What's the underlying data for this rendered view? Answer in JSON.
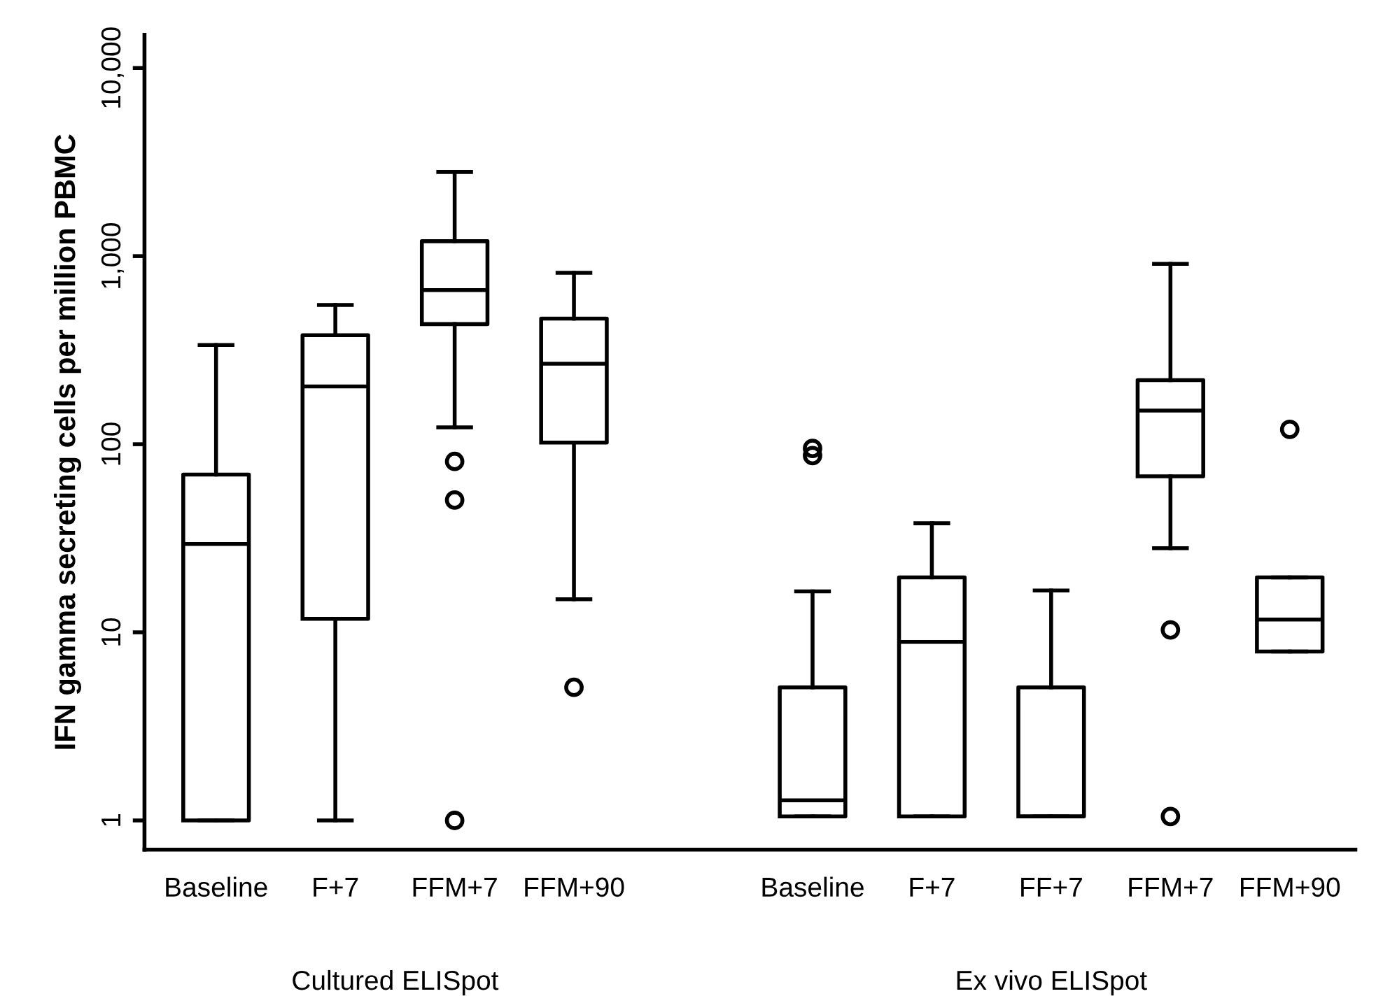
{
  "chart_data": {
    "type": "box",
    "ylabel": "IFN gamma secreting cells per million PBMC",
    "categories": [
      "Baseline",
      "F+7",
      "FFM+7",
      "FFM+90",
      null,
      "Baseline",
      "F+7",
      "FF+7",
      "FFM+7",
      "FFM+90"
    ],
    "boxes": [
      {
        "low": 1,
        "q1": 1,
        "median": 29.5,
        "q3": 69,
        "high": 337
      },
      {
        "low": 1,
        "q1": 11.8,
        "median": 203,
        "q3": 380,
        "high": 550
      },
      {
        "low": 123,
        "q1": 435,
        "median": 660,
        "q3": 1200,
        "high": 2800,
        "outliers": [
          81,
          50.5,
          1
        ]
      },
      {
        "low": 15,
        "q1": 102,
        "median": 268,
        "q3": 465,
        "high": 815,
        "outliers": [
          5.1
        ]
      },
      null,
      {
        "low": 1.05,
        "q1": 1.05,
        "median": 1.28,
        "q3": 5.1,
        "high": 16.5,
        "outliers": [
          95,
          87
        ]
      },
      {
        "low": 1.05,
        "q1": 1.05,
        "median": 8.9,
        "q3": 19.6,
        "high": 38
      },
      {
        "low": 1.05,
        "q1": 1.05,
        "median": 1.05,
        "q3": 5.1,
        "high": 16.7
      },
      {
        "low": 28,
        "q1": 67.5,
        "median": 151,
        "q3": 219,
        "high": 910,
        "outliers": [
          10.3,
          1.05
        ]
      },
      {
        "low": 7.9,
        "q1": 7.9,
        "median": 11.7,
        "q3": 19.6,
        "high": 19.6,
        "outliers": [
          120
        ]
      }
    ],
    "log": "y",
    "ylim": [
      0.7,
      15000
    ],
    "yticks": [
      1,
      10,
      100,
      {
        "value": 1000,
        "label": "1,000"
      },
      {
        "value": 10000,
        "label": "10,000"
      }
    ],
    "annotations": [
      "Cultured ELISpot",
      "Ex vivo ELISpot"
    ],
    "grid": false,
    "legend": false
  }
}
